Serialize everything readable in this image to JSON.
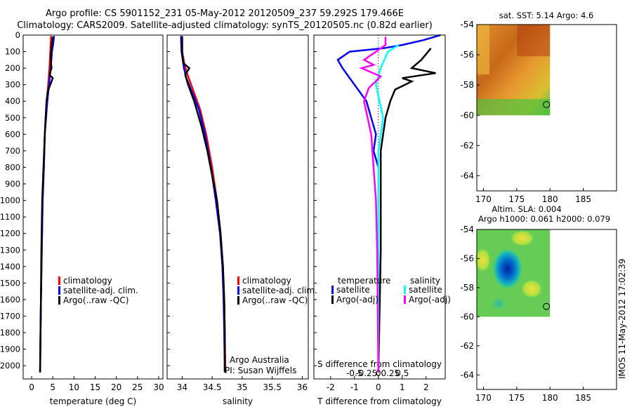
{
  "header": {
    "line1": "Argo profile: CS 5901152_231 05-May-2012 20120509_237 59.292S 179.466E",
    "line2": "Climatology: CARS2009. Satellite-adjusted climatology: synTS_20120505.nc (0.82d earlier)"
  },
  "side_stamp": "IMOS 11-May-2012 17:02:39",
  "colors": {
    "climatology": "#ff0000",
    "satellite": "#0000ff",
    "argo": "#000000",
    "sat_salinity": "#00ffff",
    "argo_salinity": "#ff00ff"
  },
  "chart_data": [
    {
      "id": "temperature",
      "type": "line",
      "xlabel": "temperature (deg C)",
      "ylabel": "",
      "xlim": [
        -2,
        31
      ],
      "ylim": [
        2080,
        0
      ],
      "xticks": [
        0,
        5,
        10,
        15,
        20,
        25,
        30
      ],
      "yticks": [
        0,
        100,
        200,
        300,
        400,
        500,
        600,
        700,
        800,
        900,
        1000,
        1100,
        1200,
        1300,
        1400,
        1500,
        1600,
        1700,
        1800,
        1900,
        2000
      ],
      "legend": {
        "position": "lower-middle",
        "entries": [
          "climatology",
          "satellite-adj. clim.",
          "Argo(..raw -QC)"
        ]
      },
      "series": [
        {
          "name": "climatology",
          "color": "#ff0000",
          "points": [
            [
              4.6,
              5
            ],
            [
              4.5,
              50
            ],
            [
              4.4,
              100
            ],
            [
              4.2,
              200
            ],
            [
              3.9,
              300
            ],
            [
              3.6,
              400
            ],
            [
              3.3,
              500
            ],
            [
              3.1,
              600
            ],
            [
              2.9,
              800
            ],
            [
              2.6,
              1000
            ],
            [
              2.4,
              1300
            ],
            [
              2.2,
              1600
            ],
            [
              2.1,
              1800
            ],
            [
              2.0,
              2040
            ]
          ]
        },
        {
          "name": "satellite-adj. clim.",
          "color": "#0000ff",
          "points": [
            [
              5.3,
              5
            ],
            [
              5.1,
              50
            ],
            [
              4.8,
              100
            ],
            [
              4.5,
              200
            ],
            [
              4.1,
              300
            ],
            [
              3.7,
              400
            ],
            [
              3.4,
              500
            ],
            [
              3.1,
              600
            ],
            [
              2.9,
              800
            ],
            [
              2.6,
              1000
            ],
            [
              2.4,
              1300
            ],
            [
              2.2,
              1600
            ],
            [
              2.1,
              1800
            ],
            [
              2.0,
              2040
            ]
          ]
        },
        {
          "name": "Argo(..raw -QC)",
          "color": "#000000",
          "points": [
            [
              5.0,
              10
            ],
            [
              4.8,
              50
            ],
            [
              4.6,
              100
            ],
            [
              4.5,
              150
            ],
            [
              4.7,
              200
            ],
            [
              4.2,
              240
            ],
            [
              5.0,
              260
            ],
            [
              4.4,
              300
            ],
            [
              3.8,
              340
            ],
            [
              3.5,
              400
            ],
            [
              3.3,
              500
            ],
            [
              3.1,
              600
            ],
            [
              2.8,
              800
            ],
            [
              2.5,
              1000
            ],
            [
              2.3,
              1300
            ],
            [
              2.2,
              1600
            ],
            [
              2.1,
              1800
            ],
            [
              2.0,
              2040
            ]
          ]
        }
      ]
    },
    {
      "id": "salinity",
      "type": "line",
      "xlabel": "salinity",
      "xlim": [
        33.75,
        36.1
      ],
      "ylim": [
        2080,
        0
      ],
      "xticks": [
        34,
        34.5,
        35,
        35.5,
        36
      ],
      "legend": {
        "position": "lower-middle",
        "entries": [
          "climatology",
          "satellite-adj. clim.",
          "Argo(..raw -QC)"
        ]
      },
      "annotations": [
        "Argo Australia",
        "PI: Susan Wijffels"
      ],
      "series": [
        {
          "name": "climatology",
          "color": "#ff0000",
          "points": [
            [
              34.0,
              5
            ],
            [
              34.0,
              100
            ],
            [
              34.04,
              180
            ],
            [
              34.1,
              250
            ],
            [
              34.2,
              350
            ],
            [
              34.3,
              450
            ],
            [
              34.4,
              600
            ],
            [
              34.5,
              800
            ],
            [
              34.58,
              1000
            ],
            [
              34.64,
              1200
            ],
            [
              34.68,
              1400
            ],
            [
              34.7,
              1600
            ],
            [
              34.71,
              1800
            ],
            [
              34.72,
              2040
            ]
          ]
        },
        {
          "name": "satellite-adj. clim.",
          "color": "#0000ff",
          "points": [
            [
              33.98,
              5
            ],
            [
              33.99,
              100
            ],
            [
              34.03,
              200
            ],
            [
              34.07,
              260
            ],
            [
              34.17,
              350
            ],
            [
              34.28,
              450
            ],
            [
              34.38,
              600
            ],
            [
              34.48,
              800
            ],
            [
              34.56,
              1000
            ],
            [
              34.63,
              1200
            ],
            [
              34.67,
              1400
            ],
            [
              34.69,
              1600
            ],
            [
              34.7,
              1800
            ],
            [
              34.71,
              2040
            ]
          ]
        },
        {
          "name": "Argo(..raw -QC)",
          "color": "#000000",
          "points": [
            [
              34.0,
              10
            ],
            [
              34.0,
              100
            ],
            [
              34.02,
              170
            ],
            [
              34.12,
              200
            ],
            [
              34.05,
              240
            ],
            [
              34.1,
              300
            ],
            [
              34.2,
              400
            ],
            [
              34.32,
              550
            ],
            [
              34.42,
              700
            ],
            [
              34.5,
              850
            ],
            [
              34.58,
              1000
            ],
            [
              34.64,
              1200
            ],
            [
              34.68,
              1400
            ],
            [
              34.7,
              1600
            ],
            [
              34.71,
              1800
            ],
            [
              34.71,
              2040
            ]
          ]
        }
      ]
    },
    {
      "id": "difference",
      "type": "line",
      "xlabel": "T difference from climatology",
      "top_label": "S difference from climatology",
      "xlim": [
        -2.7,
        2.8
      ],
      "ylim": [
        2080,
        0
      ],
      "xticks": [
        -2,
        -1,
        0,
        1,
        2
      ],
      "sticks": [
        "-0.5",
        "-0.25",
        "0",
        "0.25",
        "0.5"
      ],
      "legend": {
        "position": "lower-middle",
        "temperature_title": "temperature",
        "salinity_title": "salinity",
        "temperature_entries": [
          "satellite",
          "Argo(-adj)"
        ],
        "salinity_entries": [
          "satellite",
          "Argo(-adj)"
        ]
      },
      "series": [
        {
          "name": "temperature satellite",
          "color": "#0000ff",
          "points": [
            [
              2.6,
              0
            ],
            [
              1.9,
              30
            ],
            [
              1.0,
              60
            ],
            [
              0.2,
              80
            ],
            [
              -1.2,
              100
            ],
            [
              -1.7,
              150
            ],
            [
              -1.5,
              200
            ],
            [
              -1.1,
              280
            ],
            [
              -0.5,
              400
            ],
            [
              -0.3,
              500
            ],
            [
              -0.1,
              600
            ],
            [
              -0.2,
              700
            ],
            [
              0.0,
              800
            ],
            [
              0.0,
              1000
            ],
            [
              0.0,
              1300
            ],
            [
              0.0,
              2040
            ]
          ]
        },
        {
          "name": "temperature Argo(-adj)",
          "color": "#000000",
          "points": [
            [
              2.2,
              80
            ],
            [
              1.8,
              150
            ],
            [
              1.4,
              200
            ],
            [
              2.4,
              230
            ],
            [
              1.0,
              260
            ],
            [
              1.4,
              280
            ],
            [
              0.7,
              330
            ],
            [
              0.5,
              400
            ],
            [
              0.3,
              500
            ],
            [
              0.1,
              700
            ],
            [
              0.1,
              1000
            ],
            [
              0.1,
              1300
            ],
            [
              0.0,
              2040
            ]
          ]
        },
        {
          "name": "salinity satellite",
          "color": "#00ffff",
          "points": [
            [
              0.85,
              60
            ],
            [
              0.4,
              100
            ],
            [
              0.1,
              200
            ],
            [
              -0.1,
              300
            ],
            [
              0.05,
              400
            ],
            [
              0.2,
              500
            ],
            [
              0.1,
              600
            ],
            [
              0.0,
              700
            ],
            [
              0.0,
              1000
            ],
            [
              0.0,
              2040
            ]
          ]
        },
        {
          "name": "salinity Argo(-adj)",
          "color": "#ff00ff",
          "points": [
            [
              0.3,
              10
            ],
            [
              0.3,
              60
            ],
            [
              -0.6,
              150
            ],
            [
              -0.2,
              180
            ],
            [
              -0.7,
              200
            ],
            [
              0.1,
              250
            ],
            [
              -0.4,
              320
            ],
            [
              -0.6,
              400
            ],
            [
              -0.3,
              600
            ],
            [
              -0.2,
              800
            ],
            [
              -0.1,
              1000
            ],
            [
              -0.05,
              1300
            ],
            [
              0.0,
              2040
            ]
          ]
        }
      ]
    },
    {
      "id": "sst_map",
      "type": "heatmap",
      "title": "sat. SST: 5.14  Argo: 4.6",
      "xlim": [
        169,
        190
      ],
      "ylim": [
        -54,
        -65
      ],
      "xticks": [
        170,
        175,
        180,
        185
      ],
      "yticks": [
        -54,
        -56,
        -58,
        -60,
        -62,
        -64
      ],
      "data_extent": {
        "lon": [
          169,
          180
        ],
        "lat": [
          -54,
          -60
        ]
      },
      "marker": {
        "lon": 179.466,
        "lat": -59.292
      }
    },
    {
      "id": "sla_map",
      "type": "heatmap",
      "title_line1": "Altim. SLA: 0.004",
      "title_line2": "Argo h1000: 0.061  h2000: 0.079",
      "xlim": [
        169,
        190
      ],
      "ylim": [
        -54,
        -65
      ],
      "xticks": [
        170,
        175,
        180,
        185
      ],
      "yticks": [
        -54,
        -56,
        -58,
        -60,
        -62,
        -64
      ],
      "data_extent": {
        "lon": [
          169,
          180
        ],
        "lat": [
          -54,
          -60
        ]
      },
      "marker": {
        "lon": 179.466,
        "lat": -59.292
      }
    }
  ]
}
